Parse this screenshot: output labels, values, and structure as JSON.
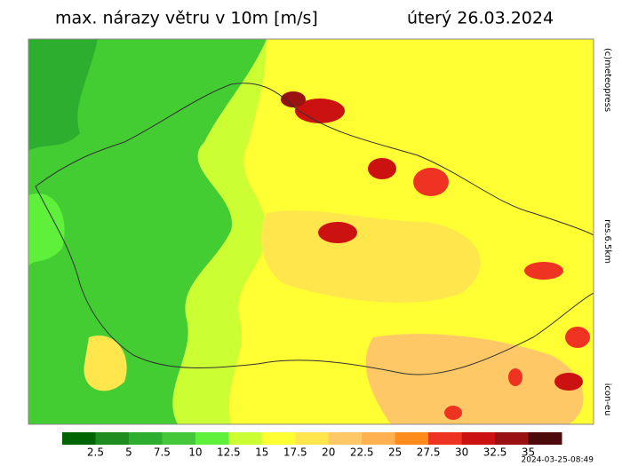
{
  "header": {
    "title": "max. nárazy větru v 10m [m/s]",
    "date": "úterý 26.03.2024"
  },
  "side_labels": [
    "(c)meteopress",
    "res.6.5km",
    "icon-eu"
  ],
  "legend": {
    "colors": [
      "#006400",
      "#1e8c1e",
      "#2eae2e",
      "#44c83a",
      "#5ef03a",
      "#ccff33",
      "#ffff33",
      "#ffe64d",
      "#ffc866",
      "#ffb050",
      "#ff8c1a",
      "#ee3322",
      "#cc1111",
      "#991111",
      "#4d0a0a"
    ],
    "ticks": [
      2.5,
      5,
      7.5,
      10,
      12.5,
      15,
      17.5,
      20,
      22.5,
      25,
      27.5,
      30,
      32.5,
      35
    ]
  },
  "timestamp": "2024-03-25-08:49"
}
